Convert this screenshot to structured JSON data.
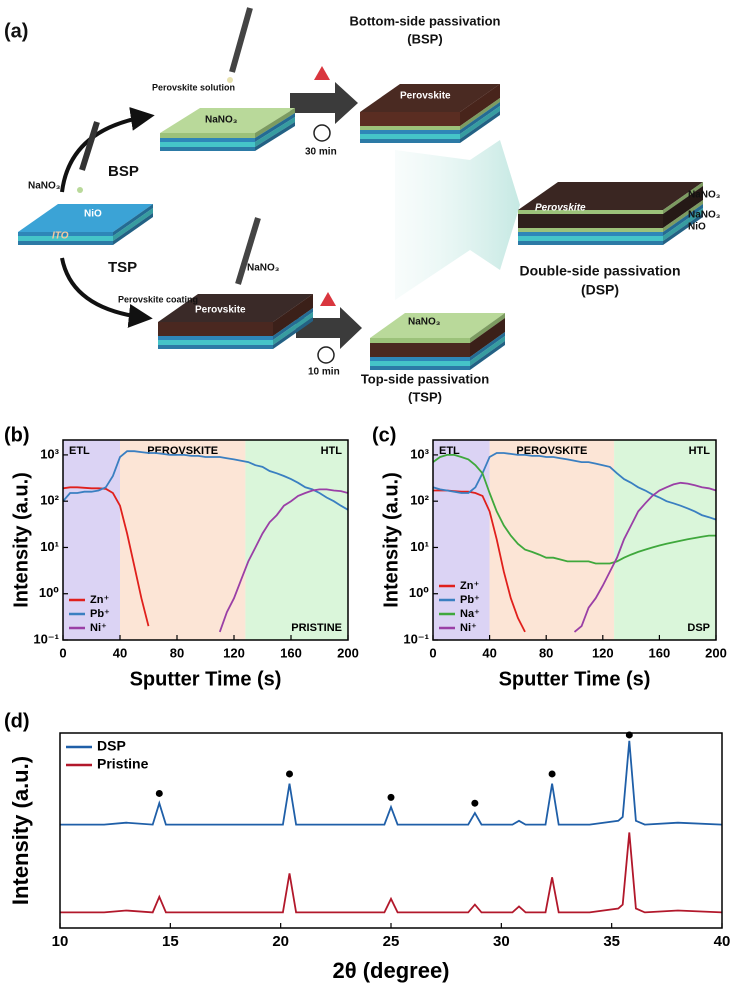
{
  "diagram": {
    "label": "(a)",
    "start": {
      "layer_top": "NaNO₃",
      "layer": "NiO",
      "substrate": "ITO"
    },
    "bsp": {
      "route": "BSP",
      "step": "Perovskite solution",
      "layer": "NaNO₃",
      "time": "30 min",
      "film": "Perovskite",
      "title": "Bottom-side passivation",
      "abbr": "(BSP)"
    },
    "tsp": {
      "route": "TSP",
      "step": "Perovskite coating",
      "drop": "NaNO₃",
      "film": "Perovskite",
      "time": "10 min",
      "layer": "NaNO₃",
      "title": "Top-side passivation",
      "abbr": "(TSP)"
    },
    "dsp": {
      "film": "Perovskite",
      "top": "NaNO₃",
      "mid": "NaNO₃",
      "bottom": "NiO",
      "title": "Double-side passivation",
      "abbr": "(DSP)"
    }
  },
  "chart_data": [
    {
      "type": "line",
      "label": "(b)",
      "xlabel": "Sputter Time (s)",
      "ylabel": "Intensity (a.u.)",
      "x": [
        0,
        5,
        10,
        15,
        20,
        25,
        30,
        35,
        40,
        45,
        50,
        55,
        60,
        65,
        70,
        75,
        80,
        85,
        90,
        95,
        100,
        105,
        110,
        115,
        120,
        125,
        130,
        135,
        140,
        145,
        150,
        155,
        160,
        165,
        170,
        175,
        180,
        185,
        190,
        195,
        200
      ],
      "series": [
        {
          "name": "Zn⁺",
          "color": "#e0201c",
          "values": [
            190,
            200,
            200,
            195,
            190,
            190,
            185,
            150,
            80,
            20,
            4,
            0.8,
            0.2,
            null,
            null,
            null,
            null,
            null,
            null,
            null,
            null,
            null,
            null,
            null,
            null,
            null,
            null,
            null,
            null,
            null,
            null,
            null,
            null,
            null,
            null,
            null,
            null,
            null,
            null,
            null,
            null
          ]
        },
        {
          "name": "Pb⁺",
          "color": "#3a7fc1",
          "values": [
            100,
            150,
            150,
            160,
            160,
            170,
            200,
            350,
            900,
            1200,
            1200,
            1150,
            1100,
            1100,
            1050,
            1000,
            1000,
            1000,
            950,
            950,
            900,
            900,
            900,
            850,
            800,
            750,
            700,
            600,
            550,
            450,
            400,
            350,
            300,
            250,
            200,
            180,
            150,
            120,
            100,
            80,
            65
          ]
        },
        {
          "name": "Ni⁺",
          "color": "#9a3fa6",
          "values": [
            null,
            null,
            null,
            null,
            null,
            null,
            null,
            null,
            null,
            null,
            null,
            null,
            null,
            null,
            null,
            null,
            null,
            null,
            null,
            null,
            null,
            null,
            0.15,
            0.4,
            0.8,
            2,
            5,
            10,
            20,
            35,
            50,
            80,
            100,
            130,
            150,
            170,
            180,
            180,
            170,
            165,
            150
          ]
        }
      ],
      "xlim": [
        0,
        200
      ],
      "xticks": [
        0,
        40,
        80,
        120,
        160,
        200
      ],
      "ylim": [
        0.1,
        2100
      ],
      "log_y": true,
      "yticks": [
        {
          "value": 0.1,
          "label": "10⁻¹"
        },
        {
          "value": 1,
          "label": "10⁰"
        },
        {
          "value": 10,
          "label": "10¹"
        },
        {
          "value": 100,
          "label": "10²"
        },
        {
          "value": 1000,
          "label": "10³"
        }
      ],
      "regions": [
        {
          "label": "ETL",
          "range": [
            0,
            40
          ],
          "color": "#cfc4f0"
        },
        {
          "label": "PEROVSKITE",
          "range": [
            40,
            128
          ],
          "color": "#fbdcc8"
        },
        {
          "label": "HTL",
          "range": [
            128,
            200
          ],
          "color": "#cdf3cd"
        }
      ],
      "annotation": "PRISTINE",
      "legend": "lower left"
    },
    {
      "type": "line",
      "label": "(c)",
      "xlabel": "Sputter Time (s)",
      "ylabel": "Intensity (a.u.)",
      "x": [
        0,
        5,
        10,
        15,
        20,
        25,
        30,
        35,
        40,
        45,
        50,
        55,
        60,
        65,
        70,
        75,
        80,
        85,
        90,
        95,
        100,
        105,
        110,
        115,
        120,
        125,
        130,
        135,
        140,
        145,
        150,
        155,
        160,
        165,
        170,
        175,
        180,
        185,
        190,
        195,
        200
      ],
      "series": [
        {
          "name": "Zn⁺",
          "color": "#e0201c",
          "values": [
            170,
            170,
            170,
            165,
            160,
            160,
            150,
            130,
            60,
            15,
            3,
            0.8,
            0.3,
            0.15,
            null,
            null,
            null,
            null,
            null,
            null,
            null,
            null,
            null,
            null,
            null,
            null,
            null,
            null,
            null,
            null,
            null,
            null,
            null,
            null,
            null,
            null,
            null,
            null,
            null,
            null,
            null
          ]
        },
        {
          "name": "Pb⁺",
          "color": "#3a7fc1",
          "values": [
            200,
            180,
            170,
            160,
            150,
            150,
            200,
            400,
            900,
            1100,
            1100,
            1050,
            1000,
            1000,
            950,
            950,
            900,
            900,
            850,
            800,
            750,
            700,
            700,
            650,
            600,
            550,
            400,
            300,
            250,
            200,
            170,
            140,
            120,
            100,
            90,
            80,
            70,
            60,
            50,
            45,
            40
          ]
        },
        {
          "name": "Na⁺",
          "color": "#3fa83c",
          "values": [
            700,
            900,
            1000,
            1000,
            900,
            800,
            600,
            400,
            150,
            60,
            30,
            18,
            12,
            9,
            8,
            7,
            6,
            6,
            5.5,
            5,
            5,
            5,
            5,
            4.5,
            4.5,
            4.5,
            5,
            6,
            7,
            8,
            9,
            10,
            11,
            12,
            13,
            14,
            15,
            16,
            17,
            18,
            18
          ]
        },
        {
          "name": "Ni⁺",
          "color": "#9a3fa6",
          "values": [
            null,
            null,
            null,
            null,
            null,
            null,
            null,
            null,
            null,
            null,
            null,
            null,
            null,
            null,
            null,
            null,
            null,
            null,
            null,
            null,
            0.15,
            0.2,
            0.5,
            0.8,
            1.5,
            3,
            6,
            15,
            30,
            60,
            90,
            130,
            170,
            200,
            230,
            250,
            240,
            220,
            200,
            190,
            170
          ]
        }
      ],
      "xlim": [
        0,
        200
      ],
      "xticks": [
        0,
        40,
        80,
        120,
        160,
        200
      ],
      "ylim": [
        0.1,
        2100
      ],
      "log_y": true,
      "yticks": [
        {
          "value": 0.1,
          "label": "10⁻¹"
        },
        {
          "value": 1,
          "label": "10⁰"
        },
        {
          "value": 10,
          "label": "10¹"
        },
        {
          "value": 100,
          "label": "10²"
        },
        {
          "value": 1000,
          "label": "10³"
        }
      ],
      "regions": [
        {
          "label": "ETL",
          "range": [
            0,
            40
          ],
          "color": "#cfc4f0"
        },
        {
          "label": "PEROVSKITE",
          "range": [
            40,
            128
          ],
          "color": "#fbdcc8"
        },
        {
          "label": "HTL",
          "range": [
            128,
            200
          ],
          "color": "#cdf3cd"
        }
      ],
      "annotation": "DSP",
      "legend": "lower left"
    },
    {
      "type": "line",
      "label": "(d)",
      "xlabel": "2θ (degree)",
      "ylabel": "Intensity (a.u.)",
      "x": [
        10,
        12,
        13,
        14.2,
        14.5,
        14.8,
        17,
        20.1,
        20.4,
        20.7,
        23,
        24.7,
        25.0,
        25.3,
        27,
        28.5,
        28.8,
        29.1,
        30.5,
        30.8,
        31.1,
        32.0,
        32.3,
        32.6,
        34,
        35.3,
        35.5,
        35.8,
        36.1,
        36.5,
        38,
        40
      ],
      "series": [
        {
          "name": "DSP",
          "color": "#1f5fa8",
          "values": [
            53,
            53,
            54,
            53,
            64,
            53,
            53,
            53,
            74,
            53,
            53,
            53,
            62,
            53,
            53,
            53,
            59,
            53,
            53,
            55,
            53,
            53,
            74,
            53,
            53,
            55,
            57,
            96,
            55,
            53,
            54,
            53
          ]
        },
        {
          "name": "Pristine",
          "color": "#b2182b",
          "values": [
            8,
            8,
            9,
            8,
            16,
            8,
            8,
            8,
            28,
            8,
            8,
            8,
            15,
            8,
            8,
            8,
            12,
            8,
            8,
            11,
            8,
            8,
            26,
            8,
            8,
            10,
            12,
            49,
            10,
            8,
            9,
            8
          ]
        }
      ],
      "xlim": [
        10,
        40
      ],
      "xticks": [
        10,
        15,
        20,
        25,
        30,
        35,
        40
      ],
      "ylim": [
        0,
        100
      ],
      "log_y": false,
      "markers": {
        "x": [
          14.5,
          20.4,
          25.0,
          28.8,
          32.3,
          35.8
        ],
        "y": [
          69,
          79,
          67,
          64,
          79,
          99
        ]
      },
      "legend": "upper left"
    }
  ]
}
